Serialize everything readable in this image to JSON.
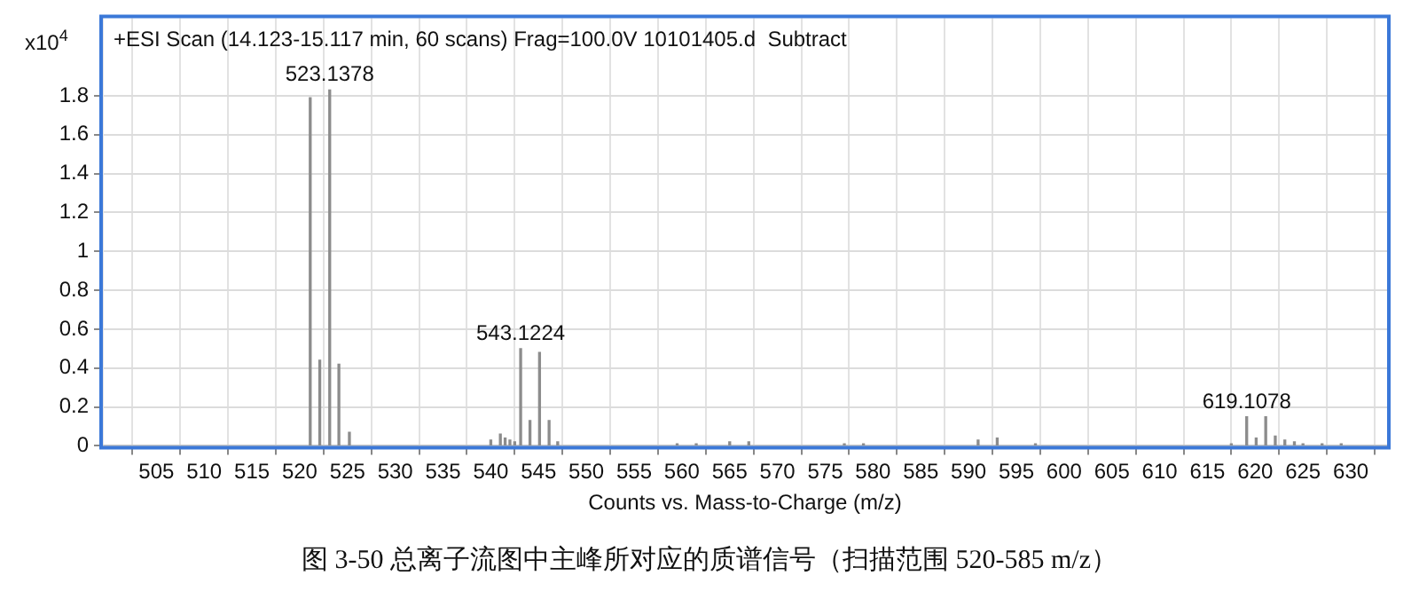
{
  "chart_data": {
    "type": "bar",
    "title": "+ESI Scan (14.123-15.117 min, 60 scans) Frag=100.0V 10101405.d  Subtract",
    "xlabel": "Counts vs. Mass-to-Charge (m/z)",
    "ylabel": "x10$^{4}$",
    "x": [
      521.1,
      522.1,
      523.1378,
      524.1,
      525.2,
      540,
      541,
      541.5,
      542,
      542.5,
      543.1224,
      544.1,
      545.1,
      546.1,
      547,
      559.5,
      561.5,
      565,
      567,
      577,
      579,
      591,
      593,
      597,
      617.5,
      619.1078,
      620.1,
      621.1,
      622.1,
      623.1,
      624.1,
      625,
      627,
      629
    ],
    "values": [
      1.79,
      0.44,
      1.83,
      0.42,
      0.07,
      0.03,
      0.06,
      0.04,
      0.03,
      0.02,
      0.5,
      0.13,
      0.48,
      0.13,
      0.02,
      0.01,
      0.01,
      0.02,
      0.02,
      0.01,
      0.01,
      0.03,
      0.04,
      0.01,
      0.01,
      0.15,
      0.04,
      0.15,
      0.05,
      0.03,
      0.02,
      0.01,
      0.01,
      0.01
    ],
    "color": "#8c8c8c",
    "xlim": [
      499.4,
      633.8
    ],
    "xticks": [
      505,
      510,
      515,
      520,
      525,
      530,
      535,
      540,
      545,
      550,
      555,
      560,
      565,
      570,
      575,
      580,
      585,
      590,
      595,
      600,
      605,
      610,
      615,
      620,
      625,
      630
    ],
    "ylim": [
      0,
      2.2
    ],
    "yticks": [
      0,
      0.2,
      0.4,
      0.6,
      0.8,
      1,
      1.2,
      1.4,
      1.6,
      1.8
    ],
    "grid": true,
    "annotations": [
      {
        "text": "523.1378",
        "x": 523.1378,
        "y": 1.83
      },
      {
        "text": "543.1224",
        "x": 543.1224,
        "y": 0.5
      },
      {
        "text": "619.1078",
        "x": 619.1078,
        "y": 0.15
      },
      "图 3-50 总离子流图中主峰所对应的质谱信号（扫描范围 520-585 m/z）"
    ]
  }
}
